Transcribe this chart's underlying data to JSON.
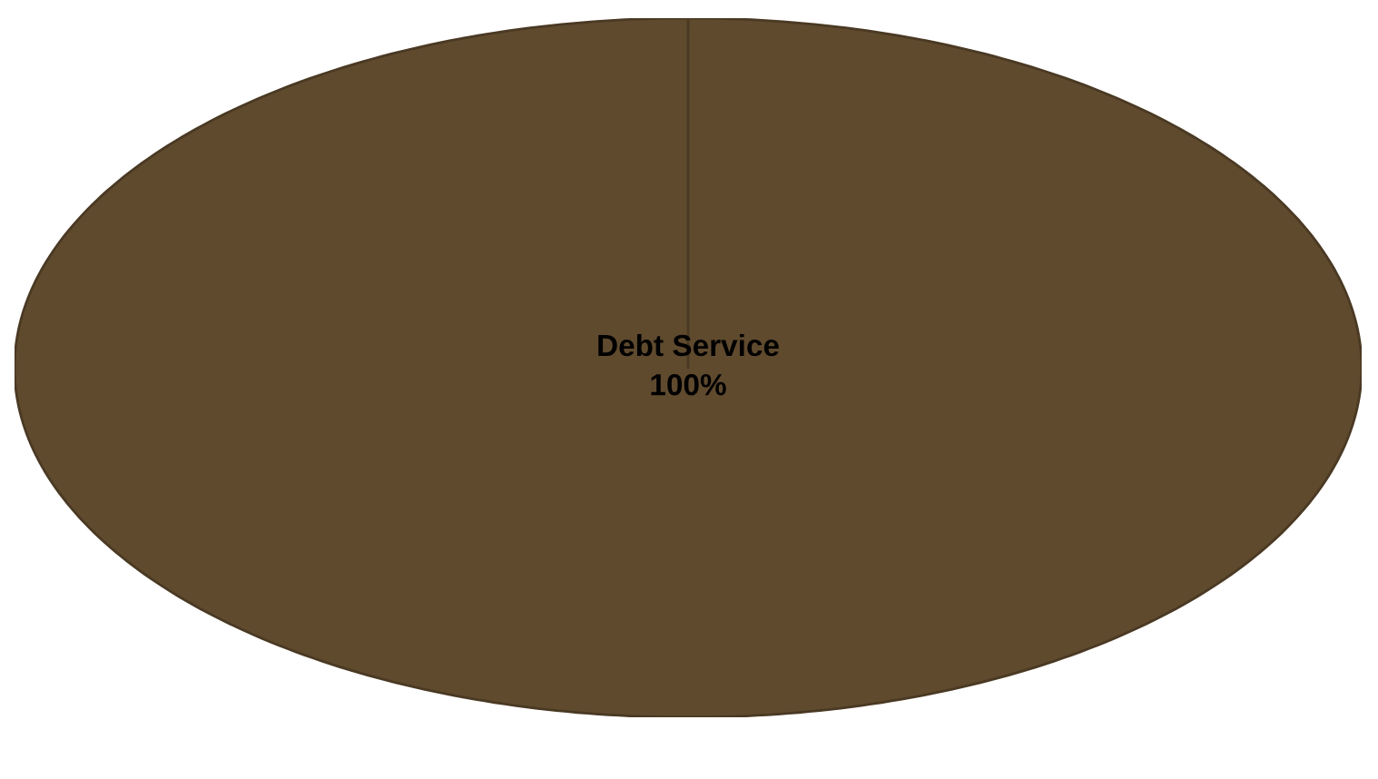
{
  "chart_data": {
    "type": "pie",
    "categories": [
      "Debt Service"
    ],
    "values": [
      100
    ],
    "colors": [
      "#5f4a2e"
    ],
    "value_labels": [
      "100%"
    ]
  }
}
